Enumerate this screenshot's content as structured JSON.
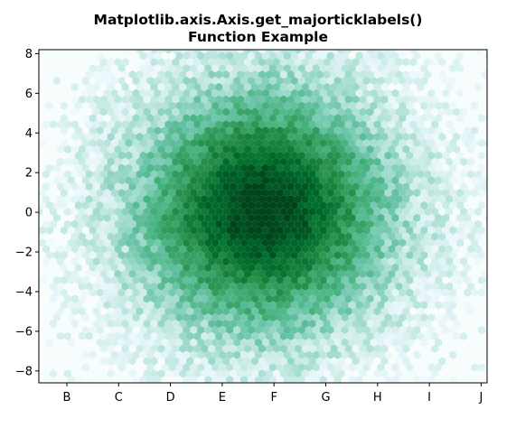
{
  "chart_data": {
    "type": "heatmap",
    "title_line1": "Matplotlib.axis.Axis.get_majorticklabels()",
    "title_line2": "Function Example",
    "xlabel": "",
    "ylabel": "",
    "x_tick_labels": [
      "B",
      "C",
      "D",
      "E",
      "F",
      "G",
      "H",
      "I",
      "J"
    ],
    "y_ticks": [
      8,
      6,
      4,
      2,
      0,
      -2,
      -4,
      -6,
      -8
    ],
    "y_tick_labels": [
      "8",
      "6",
      "4",
      "2",
      "0",
      "−2",
      "−4",
      "−6",
      "−8"
    ],
    "ylim": [
      -8.6,
      8.2
    ],
    "xlim": [
      -4.4,
      4.4
    ],
    "colormap": "BuGn",
    "colors": {
      "low": "#f7fcfd",
      "mid": "#66c2a4",
      "high": "#00441b"
    },
    "distribution": "2D normal, centered near (0, 0), std ≈ 1.5 (x) and 2.0 (y)",
    "gridsize": 60
  }
}
